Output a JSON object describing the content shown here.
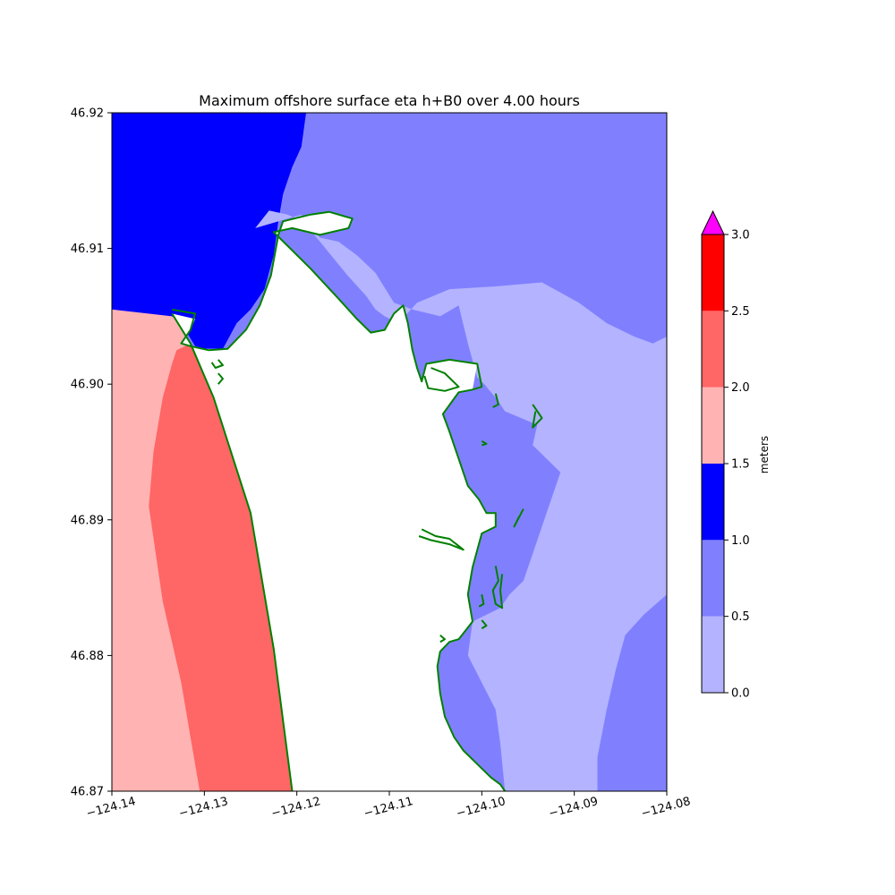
{
  "chart_data": {
    "type": "heatmap",
    "title": "Maximum offshore surface eta h+B0 over 4.00 hours",
    "xlabel": "",
    "ylabel": "",
    "xlim": [
      -124.14,
      -124.08
    ],
    "ylim": [
      46.87,
      46.92
    ],
    "x_ticks": [
      "−124.14",
      "−124.13",
      "−124.12",
      "−124.11",
      "−124.10",
      "−124.09",
      "−124.08"
    ],
    "y_ticks": [
      "46.87",
      "46.88",
      "46.89",
      "46.90",
      "46.91",
      "46.92"
    ],
    "grid": false,
    "colorbar": {
      "label": "meters",
      "levels": [
        0.0,
        0.5,
        1.0,
        1.5,
        2.0,
        2.5,
        3.0
      ],
      "tick_labels": [
        "0.0",
        "0.5",
        "1.0",
        "1.5",
        "2.0",
        "2.5",
        "3.0"
      ],
      "colors": [
        "#b3b3ff",
        "#8080ff",
        "#0000ff",
        "#ffb3b3",
        "#ff6666",
        "#ff0000"
      ],
      "extend_max_color": "#ff00ff",
      "placement": "right"
    },
    "land_color": "#ffffff",
    "shoreline_color": "#008000",
    "regions": [
      {
        "name": "ocean-pink",
        "level": "1.5-2.0",
        "points": [
          [
            -124.14,
            46.9055
          ],
          [
            -124.1335,
            46.9052
          ],
          [
            -124.1325,
            46.904
          ],
          [
            -124.1315,
            46.903
          ],
          [
            -124.129,
            46.899
          ],
          [
            -124.125,
            46.8905
          ],
          [
            -124.1225,
            46.8805
          ],
          [
            -124.1205,
            46.87
          ],
          [
            -124.14,
            46.87
          ]
        ]
      },
      {
        "name": "ocean-red",
        "level": "2.0-2.5",
        "points": [
          [
            -124.133,
            46.9025
          ],
          [
            -124.1315,
            46.903
          ],
          [
            -124.129,
            46.899
          ],
          [
            -124.125,
            46.8905
          ],
          [
            -124.1225,
            46.8805
          ],
          [
            -124.1205,
            46.87
          ],
          [
            -124.1305,
            46.87
          ],
          [
            -124.1315,
            46.874
          ],
          [
            -124.1325,
            46.878
          ],
          [
            -124.1345,
            46.884
          ],
          [
            -124.136,
            46.891
          ],
          [
            -124.1355,
            46.895
          ],
          [
            -124.1345,
            46.899
          ],
          [
            -124.1335,
            46.9015
          ]
        ]
      },
      {
        "name": "bay-dark-blue",
        "level": "1.0-1.5",
        "points": [
          [
            -124.14,
            46.92
          ],
          [
            -124.119,
            46.92
          ],
          [
            -124.1195,
            46.9175
          ],
          [
            -124.1205,
            46.916
          ],
          [
            -124.1215,
            46.914
          ],
          [
            -124.122,
            46.912
          ],
          [
            -124.1225,
            46.9095
          ],
          [
            -124.1235,
            46.907
          ],
          [
            -124.125,
            46.9055
          ],
          [
            -124.1265,
            46.9045
          ],
          [
            -124.128,
            46.9026
          ],
          [
            -124.1295,
            46.9025
          ],
          [
            -124.131,
            46.9028
          ],
          [
            -124.1325,
            46.9045
          ],
          [
            -124.1335,
            46.905
          ],
          [
            -124.14,
            46.9055
          ]
        ]
      },
      {
        "name": "bay-light-patch",
        "level": "0.0-0.5",
        "points": [
          [
            -124.1245,
            46.9115
          ],
          [
            -124.1195,
            46.9125
          ],
          [
            -124.1185,
            46.9113
          ],
          [
            -124.1175,
            46.9105
          ],
          [
            -124.1145,
            46.908
          ],
          [
            -124.1125,
            46.9065
          ],
          [
            -124.1115,
            46.9055
          ],
          [
            -124.1105,
            46.905
          ],
          [
            -124.109,
            46.9045
          ],
          [
            -124.107,
            46.906
          ],
          [
            -124.1035,
            46.907
          ],
          [
            -124.0985,
            46.9072
          ],
          [
            -124.0935,
            46.9075
          ],
          [
            -124.0895,
            46.906
          ],
          [
            -124.0865,
            46.9045
          ],
          [
            -124.0835,
            46.9035
          ],
          [
            -124.0815,
            46.903
          ],
          [
            -124.08,
            46.9035
          ],
          [
            -124.08,
            46.8845
          ],
          [
            -124.0825,
            46.883
          ],
          [
            -124.0845,
            46.8815
          ],
          [
            -124.0855,
            46.879
          ],
          [
            -124.0865,
            46.876
          ],
          [
            -124.0875,
            46.8725
          ],
          [
            -124.0875,
            46.87
          ],
          [
            -124.0975,
            46.87
          ],
          [
            -124.098,
            46.8735
          ],
          [
            -124.0985,
            46.876
          ],
          [
            -124.1,
            46.878
          ],
          [
            -124.1015,
            46.88
          ],
          [
            -124.101,
            46.8825
          ],
          [
            -124.098,
            46.8835
          ],
          [
            -124.097,
            46.8845
          ],
          [
            -124.0955,
            46.8855
          ],
          [
            -124.0945,
            46.8875
          ],
          [
            -124.0935,
            46.8895
          ],
          [
            -124.0915,
            46.8935
          ],
          [
            -124.0945,
            46.8955
          ],
          [
            -124.094,
            46.897
          ],
          [
            -124.0975,
            46.898
          ],
          [
            -124.099,
            46.8995
          ],
          [
            -124.1005,
            46.9005
          ],
          [
            -124.1015,
            46.903
          ],
          [
            -124.1025,
            46.9058
          ],
          [
            -124.1045,
            46.905
          ],
          [
            -124.1075,
            46.9055
          ],
          [
            -124.1095,
            46.906
          ],
          [
            -124.1115,
            46.9082
          ],
          [
            -124.1135,
            46.9095
          ],
          [
            -124.1155,
            46.9105
          ],
          [
            -124.1175,
            46.9108
          ],
          [
            -124.1185,
            46.9117
          ],
          [
            -124.121,
            46.9125
          ],
          [
            -124.123,
            46.9128
          ]
        ]
      },
      {
        "name": "land",
        "level": "land",
        "points": [
          [
            -124.1335,
            46.9052
          ],
          [
            -124.131,
            46.9048
          ],
          [
            -124.1315,
            46.904
          ],
          [
            -124.1325,
            46.903
          ],
          [
            -124.13,
            46.9026
          ],
          [
            -124.1275,
            46.9026
          ],
          [
            -124.1255,
            46.904
          ],
          [
            -124.124,
            46.9058
          ],
          [
            -124.1228,
            46.908
          ],
          [
            -124.122,
            46.911
          ],
          [
            -124.1215,
            46.912
          ],
          [
            -124.1185,
            46.9125
          ],
          [
            -124.1165,
            46.9127
          ],
          [
            -124.114,
            46.9122
          ],
          [
            -124.1144,
            46.9115
          ],
          [
            -124.1175,
            46.911
          ],
          [
            -124.1205,
            46.9115
          ],
          [
            -124.1225,
            46.9112
          ],
          [
            -124.121,
            46.9102
          ],
          [
            -124.1185,
            46.9085
          ],
          [
            -124.1155,
            46.9063
          ],
          [
            -124.1135,
            46.9048
          ],
          [
            -124.112,
            46.9038
          ],
          [
            -124.1105,
            46.904
          ],
          [
            -124.1095,
            46.9052
          ],
          [
            -124.1085,
            46.9058
          ],
          [
            -124.108,
            46.9045
          ],
          [
            -124.1075,
            46.9025
          ],
          [
            -124.107,
            46.9012
          ],
          [
            -124.1065,
            46.9002
          ],
          [
            -124.106,
            46.9015
          ],
          [
            -124.1035,
            46.9018
          ],
          [
            -124.1005,
            46.9015
          ],
          [
            -124.101,
            46.8996
          ],
          [
            -124.1025,
            46.8994
          ],
          [
            -124.1042,
            46.8978
          ],
          [
            -124.1035,
            46.8965
          ],
          [
            -124.1025,
            46.8945
          ],
          [
            -124.1015,
            46.8925
          ],
          [
            -124.1003,
            46.8915
          ],
          [
            -124.0995,
            46.8905
          ],
          [
            -124.0985,
            46.8905
          ],
          [
            -124.0985,
            46.8895
          ],
          [
            -124.1,
            46.889
          ],
          [
            -124.101,
            46.8865
          ],
          [
            -124.1015,
            46.8845
          ],
          [
            -124.101,
            46.8825
          ],
          [
            -124.1025,
            46.8812
          ],
          [
            -124.1035,
            46.881
          ],
          [
            -124.1045,
            46.8803
          ],
          [
            -124.1048,
            46.8792
          ],
          [
            -124.1045,
            46.8772
          ],
          [
            -124.104,
            46.8755
          ],
          [
            -124.103,
            46.874
          ],
          [
            -124.102,
            46.873
          ],
          [
            -124.1005,
            46.872
          ],
          [
            -124.099,
            46.871
          ],
          [
            -124.098,
            46.8705
          ],
          [
            -124.0975,
            46.87
          ],
          [
            -124.1205,
            46.87
          ],
          [
            -124.1225,
            46.8805
          ],
          [
            -124.125,
            46.8905
          ],
          [
            -124.129,
            46.899
          ],
          [
            -124.1315,
            46.903
          ]
        ]
      },
      {
        "name": "inlet-light",
        "level": "0.0-0.5",
        "points": [
          [
            -124.1005,
            46.9015
          ],
          [
            -124.0995,
            46.8998
          ],
          [
            -124.0985,
            46.899
          ],
          [
            -124.0975,
            46.8985
          ],
          [
            -124.0985,
            46.8992
          ],
          [
            -124.0995,
            46.9005
          ]
        ]
      }
    ],
    "shoreline": [
      [
        [
          -124.1335,
          46.9055
        ],
        [
          -124.131,
          46.9052
        ],
        [
          -124.1315,
          46.904
        ],
        [
          -124.1325,
          46.903
        ],
        [
          -124.1315,
          46.9028
        ],
        [
          -124.1295,
          46.9025
        ],
        [
          -124.1275,
          46.9026
        ],
        [
          -124.1255,
          46.904
        ],
        [
          -124.124,
          46.9058
        ],
        [
          -124.1228,
          46.908
        ],
        [
          -124.122,
          46.911
        ],
        [
          -124.1215,
          46.912
        ],
        [
          -124.1185,
          46.9125
        ],
        [
          -124.1165,
          46.9127
        ],
        [
          -124.114,
          46.9122
        ],
        [
          -124.1144,
          46.9115
        ],
        [
          -124.1175,
          46.911
        ],
        [
          -124.1205,
          46.9115
        ],
        [
          -124.1225,
          46.9112
        ],
        [
          -124.121,
          46.9102
        ],
        [
          -124.1185,
          46.9085
        ],
        [
          -124.1155,
          46.9063
        ],
        [
          -124.1135,
          46.9048
        ],
        [
          -124.112,
          46.9038
        ],
        [
          -124.1105,
          46.904
        ],
        [
          -124.1095,
          46.9052
        ],
        [
          -124.1085,
          46.9058
        ],
        [
          -124.108,
          46.9045
        ],
        [
          -124.1075,
          46.9025
        ],
        [
          -124.107,
          46.9012
        ],
        [
          -124.1065,
          46.9002
        ],
        [
          -124.106,
          46.9015
        ],
        [
          -124.1035,
          46.9018
        ],
        [
          -124.1005,
          46.9015
        ],
        [
          -124.1,
          46.8998
        ],
        [
          -124.101,
          46.8996
        ],
        [
          -124.1025,
          46.8994
        ],
        [
          -124.1042,
          46.8978
        ],
        [
          -124.1035,
          46.8965
        ],
        [
          -124.1025,
          46.8945
        ],
        [
          -124.1015,
          46.8925
        ],
        [
          -124.1003,
          46.8915
        ],
        [
          -124.0995,
          46.8905
        ],
        [
          -124.0985,
          46.8905
        ],
        [
          -124.0985,
          46.8895
        ],
        [
          -124.1,
          46.889
        ],
        [
          -124.101,
          46.8865
        ],
        [
          -124.1015,
          46.8845
        ],
        [
          -124.101,
          46.8825
        ],
        [
          -124.1025,
          46.8812
        ],
        [
          -124.1035,
          46.881
        ],
        [
          -124.1045,
          46.8803
        ],
        [
          -124.1048,
          46.8792
        ],
        [
          -124.1045,
          46.8772
        ],
        [
          -124.104,
          46.8755
        ],
        [
          -124.103,
          46.874
        ],
        [
          -124.102,
          46.873
        ],
        [
          -124.1005,
          46.872
        ],
        [
          -124.099,
          46.871
        ],
        [
          -124.098,
          46.8705
        ],
        [
          -124.0975,
          46.87
        ]
      ],
      [
        [
          -124.1335,
          46.9052
        ],
        [
          -124.1315,
          46.903
        ],
        [
          -124.129,
          46.899
        ],
        [
          -124.125,
          46.8905
        ],
        [
          -124.1225,
          46.8805
        ],
        [
          -124.1205,
          46.87
        ]
      ],
      [
        [
          -124.1055,
          46.9012
        ],
        [
          -124.104,
          46.9008
        ],
        [
          -124.1025,
          46.8998
        ],
        [
          -124.104,
          46.8995
        ],
        [
          -124.1058,
          46.8997
        ],
        [
          -124.1062,
          46.9006
        ]
      ],
      [
        [
          -124.1065,
          46.8893
        ],
        [
          -124.105,
          46.8888
        ],
        [
          -124.1035,
          46.8886
        ],
        [
          -124.102,
          46.8878
        ],
        [
          -124.1035,
          46.8882
        ],
        [
          -124.1055,
          46.8885
        ],
        [
          -124.1068,
          46.8888
        ]
      ],
      [
        [
          -124.1285,
          46.9018
        ],
        [
          -124.128,
          46.9014
        ],
        [
          -124.1288,
          46.9012
        ],
        [
          -124.1292,
          46.9016
        ]
      ],
      [
        [
          -124.1285,
          46.9008
        ],
        [
          -124.128,
          46.9004
        ],
        [
          -124.1285,
          46.9
        ]
      ],
      [
        [
          -124.1,
          46.8958
        ],
        [
          -124.0995,
          46.8956
        ],
        [
          -124.1,
          46.8955
        ]
      ],
      [
        [
          -124.0985,
          46.8993
        ],
        [
          -124.0982,
          46.8985
        ],
        [
          -124.0988,
          46.8983
        ]
      ],
      [
        [
          -124.0945,
          46.8985
        ],
        [
          -124.0935,
          46.8975
        ],
        [
          -124.0945,
          46.8968
        ],
        [
          -124.0942,
          46.898
        ]
      ],
      [
        [
          -124.0955,
          46.8908
        ],
        [
          -124.0965,
          46.8895
        ],
        [
          -124.096,
          46.8902
        ]
      ],
      [
        [
          -124.0985,
          46.8866
        ],
        [
          -124.0982,
          46.8855
        ],
        [
          -124.0988,
          46.8848
        ],
        [
          -124.0985,
          46.8838
        ],
        [
          -124.0978,
          46.8835
        ],
        [
          -124.098,
          46.8848
        ],
        [
          -124.0978,
          46.886
        ]
      ],
      [
        [
          -124.1,
          46.8826
        ],
        [
          -124.0995,
          46.8822
        ],
        [
          -124.1,
          46.882
        ]
      ],
      [
        [
          -124.1045,
          46.8815
        ],
        [
          -124.104,
          46.8812
        ],
        [
          -124.1045,
          46.881
        ]
      ],
      [
        [
          -124.1,
          46.8845
        ],
        [
          -124.0998,
          46.8838
        ],
        [
          -124.1003,
          46.8836
        ]
      ]
    ]
  }
}
